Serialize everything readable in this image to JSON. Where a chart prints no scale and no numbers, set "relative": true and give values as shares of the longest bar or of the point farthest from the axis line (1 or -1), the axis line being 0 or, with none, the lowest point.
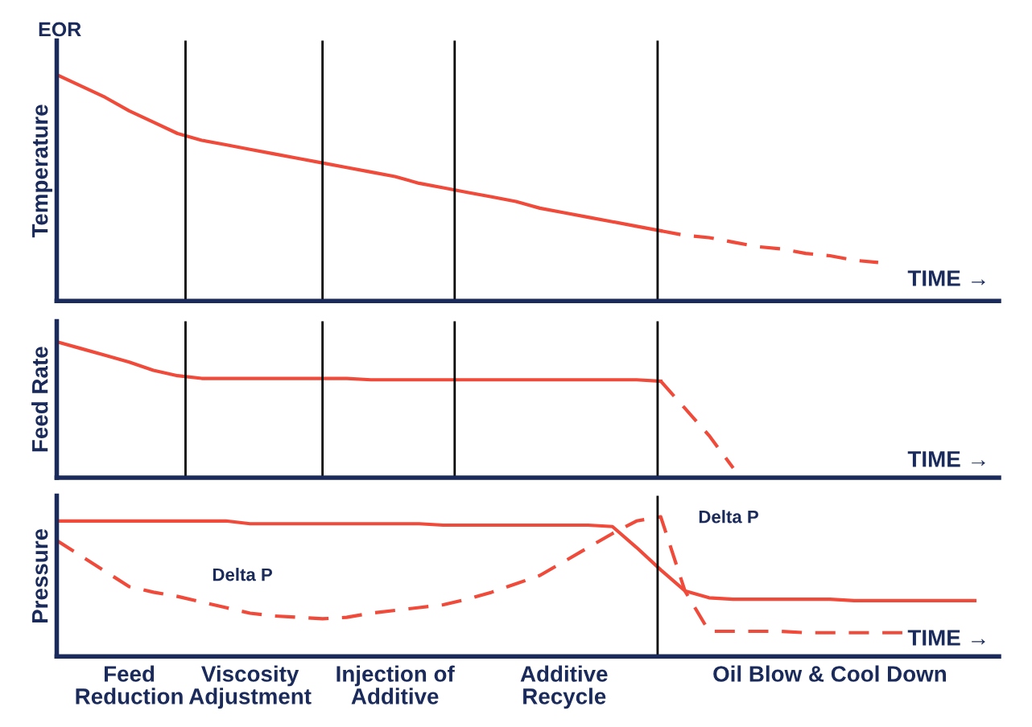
{
  "chart_data": [
    {
      "type": "line",
      "title": "EOR",
      "ylabel": "Temperature",
      "xlabel": "TIME →",
      "relative": true,
      "legend": false,
      "marker": "none",
      "categories": [
        null,
        null,
        null,
        null,
        null,
        null,
        null,
        null,
        null,
        null,
        null,
        null,
        null,
        null,
        null,
        null,
        null,
        null,
        null,
        null,
        null,
        null,
        null,
        null,
        null,
        null,
        null,
        null,
        null,
        null,
        null,
        null,
        null,
        null,
        null,
        null,
        null,
        null,
        null,
        null
      ],
      "series": [
        {
          "color": "#f04a3a",
          "line_style": "solid",
          "values": [
            1.0,
            0.95,
            0.9,
            0.84,
            0.79,
            0.74,
            0.71,
            0.69,
            0.67,
            0.65,
            0.63,
            0.61,
            0.59,
            0.57,
            0.55,
            0.52,
            0.5,
            0.48,
            0.46,
            0.44,
            0.41,
            0.39,
            0.37,
            0.35,
            0.33,
            0.31,
            null,
            null,
            null,
            null,
            null,
            null,
            null,
            null,
            null,
            null,
            null,
            null,
            null,
            null
          ]
        },
        {
          "color": "#f04a3a",
          "line_style": "dashed",
          "values": [
            null,
            null,
            null,
            null,
            null,
            null,
            null,
            null,
            null,
            null,
            null,
            null,
            null,
            null,
            null,
            null,
            null,
            null,
            null,
            null,
            null,
            null,
            null,
            null,
            null,
            0.31,
            0.29,
            0.28,
            0.26,
            0.24,
            0.23,
            0.21,
            0.2,
            0.18,
            0.17,
            null,
            null,
            null,
            null,
            null
          ]
        }
      ]
    },
    {
      "type": "line",
      "ylabel": "Feed Rate",
      "xlabel": "TIME →",
      "relative": true,
      "legend": false,
      "marker": "none",
      "categories": [
        null,
        null,
        null,
        null,
        null,
        null,
        null,
        null,
        null,
        null,
        null,
        null,
        null,
        null,
        null,
        null,
        null,
        null,
        null,
        null,
        null,
        null,
        null,
        null,
        null,
        null,
        null,
        null,
        null,
        null,
        null,
        null,
        null,
        null,
        null,
        null,
        null,
        null,
        null,
        null
      ],
      "series": [
        {
          "color": "#f04a3a",
          "line_style": "solid",
          "values": [
            1.0,
            0.95,
            0.9,
            0.85,
            0.79,
            0.75,
            0.73,
            0.73,
            0.73,
            0.73,
            0.73,
            0.73,
            0.73,
            0.72,
            0.72,
            0.72,
            0.72,
            0.72,
            0.72,
            0.72,
            0.72,
            0.72,
            0.72,
            0.72,
            0.72,
            0.71,
            null,
            null,
            null,
            null,
            null,
            null,
            null,
            null,
            null,
            null,
            null,
            null,
            null,
            null
          ]
        },
        {
          "color": "#f04a3a",
          "line_style": "dashed",
          "values": [
            null,
            null,
            null,
            null,
            null,
            null,
            null,
            null,
            null,
            null,
            null,
            null,
            null,
            null,
            null,
            null,
            null,
            null,
            null,
            null,
            null,
            null,
            null,
            null,
            null,
            0.71,
            0.51,
            0.31,
            0.07,
            null,
            null,
            null,
            null,
            null,
            null,
            null,
            null,
            null,
            null,
            null
          ]
        }
      ]
    },
    {
      "type": "line",
      "ylabel": "Pressure",
      "xlabel": "TIME →",
      "relative": true,
      "legend": false,
      "marker": "none",
      "categories": [
        null,
        null,
        null,
        "Feed\nReduction",
        null,
        null,
        null,
        null,
        "Viscosity\nAdjustment",
        null,
        null,
        null,
        null,
        null,
        "Injection of\nAdditive",
        null,
        null,
        null,
        null,
        null,
        null,
        "Additive\nRecycle",
        null,
        null,
        null,
        null,
        null,
        null,
        null,
        null,
        null,
        null,
        "Oil Blow & Cool Down",
        null,
        null,
        null,
        null,
        null,
        null,
        null
      ],
      "series": [
        {
          "color": "#f04a3a",
          "line_style": "solid",
          "values": [
            0.97,
            0.97,
            0.97,
            0.97,
            0.97,
            0.97,
            0.97,
            0.97,
            0.95,
            0.95,
            0.95,
            0.95,
            0.95,
            0.95,
            0.95,
            0.95,
            0.94,
            0.94,
            0.94,
            0.94,
            0.94,
            0.94,
            0.94,
            0.93,
            0.78,
            0.62,
            0.47,
            0.42,
            0.41,
            0.41,
            0.41,
            0.41,
            0.41,
            0.4,
            0.4,
            0.4,
            0.4,
            0.4,
            0.4,
            null
          ]
        },
        {
          "color": "#f04a3a",
          "line_style": "dashed",
          "values": [
            0.83,
            0.72,
            0.61,
            0.5,
            0.46,
            0.43,
            0.39,
            0.35,
            0.31,
            0.29,
            0.28,
            0.27,
            0.28,
            0.31,
            0.33,
            0.35,
            0.37,
            0.41,
            0.46,
            0.52,
            0.58,
            0.68,
            0.78,
            0.88,
            0.97,
            1.0,
            0.47,
            0.18,
            0.18,
            0.18,
            0.18,
            0.17,
            0.17,
            0.17,
            0.17,
            0.17,
            null,
            null,
            null,
            null
          ]
        }
      ],
      "annotations": [
        "Delta P",
        "Delta P"
      ]
    }
  ]
}
